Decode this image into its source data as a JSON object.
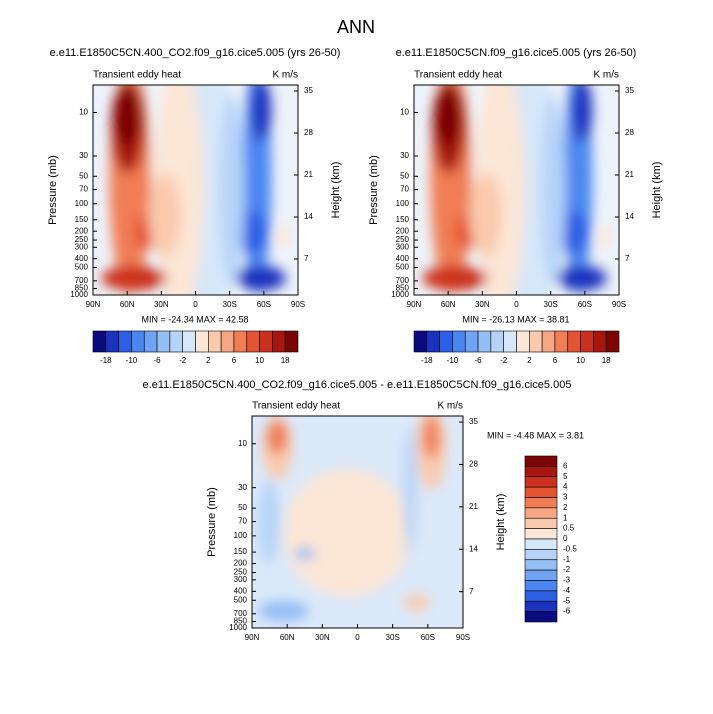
{
  "title": "ANN",
  "chart_data": [
    {
      "type": "contour",
      "title": "e.e11.E1850C5CN.400_CO2.f09_g16.cice5.005 (yrs 26-50)",
      "left_label": "Transient eddy heat",
      "right_label": "K m/s",
      "ylabel": "Pressure (mb)",
      "y2label": "Height (km)",
      "xlim": [
        90,
        -90
      ],
      "xticks": [
        {
          "value": 90,
          "label": "90N"
        },
        {
          "value": 60,
          "label": "60N"
        },
        {
          "value": 30,
          "label": "30N"
        },
        0,
        {
          "value": -30,
          "label": "30S"
        },
        {
          "value": -60,
          "label": "60S"
        },
        {
          "value": -90,
          "label": "90S"
        }
      ],
      "ylim": [
        1000,
        5
      ],
      "log_y": true,
      "yticks": [
        10,
        30,
        50,
        70,
        100,
        150,
        200,
        250,
        300,
        400,
        500,
        700,
        850,
        1000
      ],
      "y2lim": [
        1,
        36
      ],
      "y2ticks": [
        7,
        14,
        21,
        28,
        35
      ],
      "annotation": "MIN = -24.34   MAX = 42.58",
      "colorbar": {
        "orientation": "horizontal",
        "colors": [
          "#0b0b80",
          "#1a33bf",
          "#2c5fe6",
          "#4b86f0",
          "#70a3f3",
          "#95bef5",
          "#b6d3f7",
          "#d6e7f9",
          "#fce6d6",
          "#f9caae",
          "#f6a682",
          "#f07d55",
          "#e45332",
          "#cc311f",
          "#a81610",
          "#7a0605"
        ],
        "labels": [
          -18,
          -10,
          -6,
          -2,
          2,
          6,
          10,
          18
        ]
      }
    },
    {
      "type": "contour",
      "title": "e.e11.E1850C5CN.f09_g16.cice5.005 (yrs 26-50)",
      "left_label": "Transient eddy heat",
      "right_label": "K m/s",
      "ylabel": "Pressure (mb)",
      "y2label": "Height (km)",
      "xlim": [
        90,
        -90
      ],
      "xticks": [
        {
          "value": 90,
          "label": "90N"
        },
        {
          "value": 60,
          "label": "60N"
        },
        {
          "value": 30,
          "label": "30N"
        },
        0,
        {
          "value": -30,
          "label": "30S"
        },
        {
          "value": -60,
          "label": "60S"
        },
        {
          "value": -90,
          "label": "90S"
        }
      ],
      "ylim": [
        1000,
        5
      ],
      "log_y": true,
      "yticks": [
        10,
        30,
        50,
        70,
        100,
        150,
        200,
        250,
        300,
        400,
        500,
        700,
        850,
        1000
      ],
      "y2lim": [
        1,
        36
      ],
      "y2ticks": [
        7,
        14,
        21,
        28,
        35
      ],
      "annotation": "MIN = -26.13   MAX = 38.81",
      "colorbar": {
        "orientation": "horizontal",
        "colors": [
          "#0b0b80",
          "#1a33bf",
          "#2c5fe6",
          "#4b86f0",
          "#70a3f3",
          "#95bef5",
          "#b6d3f7",
          "#d6e7f9",
          "#fce6d6",
          "#f9caae",
          "#f6a682",
          "#f07d55",
          "#e45332",
          "#cc311f",
          "#a81610",
          "#7a0605"
        ],
        "labels": [
          -18,
          -10,
          -6,
          -2,
          2,
          6,
          10,
          18
        ]
      }
    },
    {
      "type": "contour",
      "title": "e.e11.E1850C5CN.400_CO2.f09_g16.cice5.005 - e.e11.E1850C5CN.f09_g16.cice5.005",
      "left_label": "Transient eddy heat",
      "right_label": "K m/s",
      "ylabel": "Pressure (mb)",
      "y2label": "Height (km)",
      "xlim": [
        90,
        -90
      ],
      "xticks": [
        {
          "value": 90,
          "label": "90N"
        },
        {
          "value": 60,
          "label": "60N"
        },
        {
          "value": 30,
          "label": "30N"
        },
        0,
        {
          "value": -30,
          "label": "30S"
        },
        {
          "value": -60,
          "label": "60S"
        },
        {
          "value": -90,
          "label": "90S"
        }
      ],
      "ylim": [
        1000,
        5
      ],
      "log_y": true,
      "yticks": [
        10,
        30,
        50,
        70,
        100,
        150,
        200,
        250,
        300,
        400,
        500,
        700,
        850,
        1000
      ],
      "y2lim": [
        1,
        36
      ],
      "y2ticks": [
        7,
        14,
        21,
        28,
        35
      ],
      "annotation": "MIN = -4.48   MAX = 3.81",
      "colorbar": {
        "orientation": "vertical",
        "colors": [
          "#7a0605",
          "#a81610",
          "#cc311f",
          "#e45332",
          "#f07d55",
          "#f6a682",
          "#f9caae",
          "#fce6d6",
          "#d6e7f9",
          "#b6d3f7",
          "#95bef5",
          "#70a3f3",
          "#4b86f0",
          "#2c5fe6",
          "#1a33bf",
          "#0b0b80"
        ],
        "labels": [
          6,
          5,
          4,
          3,
          2,
          1,
          0.5,
          0,
          -0.5,
          -1,
          -2,
          -3,
          -4,
          -5,
          -6
        ]
      }
    }
  ]
}
